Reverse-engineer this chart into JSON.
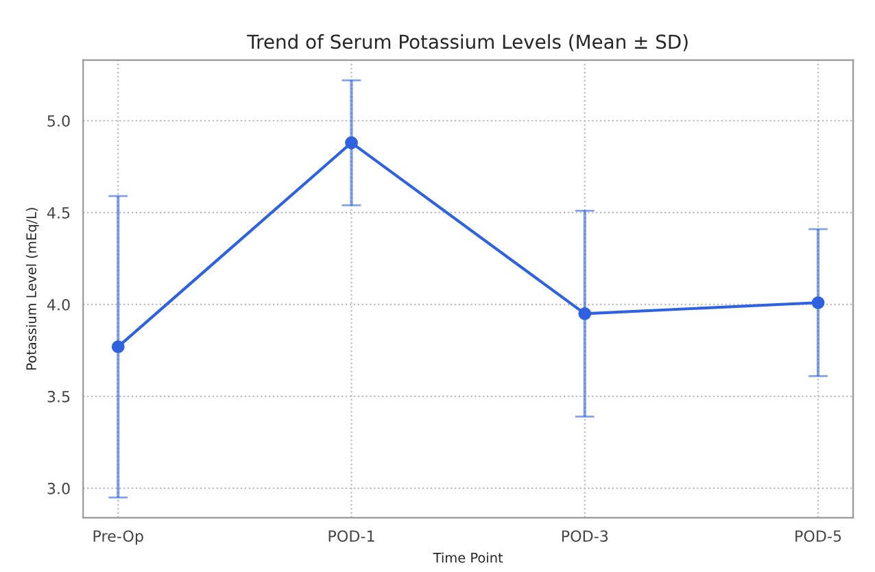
{
  "chart_data": {
    "type": "line",
    "title": "Trend of Serum Potassium Levels (Mean ± SD)",
    "xlabel": "Time Point",
    "ylabel": "Potassium Level (mEq/L)",
    "categories": [
      "Pre-Op",
      "POD-1",
      "POD-3",
      "POD-5"
    ],
    "series": [
      {
        "color": "#2f62e0",
        "values": [
          3.77,
          4.88,
          3.95,
          4.01
        ],
        "errors": [
          0.82,
          0.34,
          0.56,
          0.4
        ]
      }
    ],
    "ylim": [
      2.84,
      5.33
    ],
    "yticks": [
      {
        "value": 3,
        "label": "3.0"
      },
      3.5,
      {
        "value": 4,
        "label": "4.0"
      },
      4.5,
      {
        "value": 5,
        "label": "5.0"
      }
    ],
    "grid": true,
    "marker": "circle",
    "line_style": "solid"
  }
}
